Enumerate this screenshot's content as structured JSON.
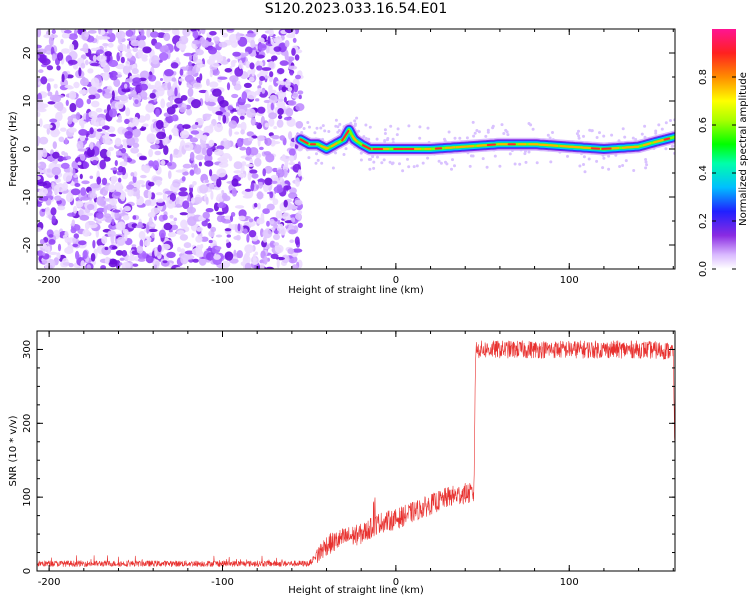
{
  "title": "S120.2023.033.16.54.E01",
  "chart_data": [
    {
      "type": "heatmap",
      "xlabel": "Height of straight line (km)",
      "ylabel": "Frequency (Hz)",
      "xlim": [
        -207,
        161
      ],
      "ylim": [
        -25,
        25
      ],
      "x_ticks": [
        -200,
        -100,
        0,
        100
      ],
      "y_ticks": [
        -20,
        -10,
        0,
        10,
        20
      ],
      "noise_region_x": [
        -207,
        -55
      ],
      "signal_track": {
        "x": [
          -55,
          -50,
          -45,
          -40,
          -35,
          -30,
          -27,
          -24,
          -20,
          -15,
          -10,
          0,
          20,
          40,
          60,
          80,
          100,
          120,
          140,
          150,
          161
        ],
        "y": [
          2,
          1,
          1,
          0,
          1,
          2,
          4,
          2,
          1,
          0,
          0,
          0,
          0,
          0.5,
          1,
          1,
          0.5,
          0,
          0.5,
          1.5,
          2.5
        ]
      },
      "colorbar": {
        "label": "Normalized spectral amplitude",
        "range": [
          0,
          1
        ],
        "ticks": [
          "0.0",
          "0.2",
          "0.4",
          "0.6",
          "0.8"
        ]
      }
    },
    {
      "type": "line",
      "xlabel": "Height of straight line (km)",
      "ylabel": "SNR (10 * v/v)",
      "xlim": [
        -207,
        161
      ],
      "ylim": [
        0,
        325
      ],
      "x_ticks": [
        -200,
        -100,
        0,
        100
      ],
      "y_ticks": [
        0,
        100,
        200,
        300
      ],
      "series": [
        {
          "color": "#e8312f",
          "x": [
            -207,
            -150,
            -100,
            -50,
            -40,
            -30,
            -20,
            -13,
            -10,
            0,
            10,
            20,
            30,
            40,
            45,
            46,
            47,
            60,
            80,
            100,
            120,
            140,
            160,
            161
          ],
          "y": [
            10,
            10,
            10,
            10,
            35,
            45,
            50,
            60,
            65,
            70,
            80,
            90,
            100,
            105,
            105,
            300,
            300,
            300,
            300,
            300,
            300,
            300,
            298,
            150
          ]
        }
      ]
    }
  ]
}
